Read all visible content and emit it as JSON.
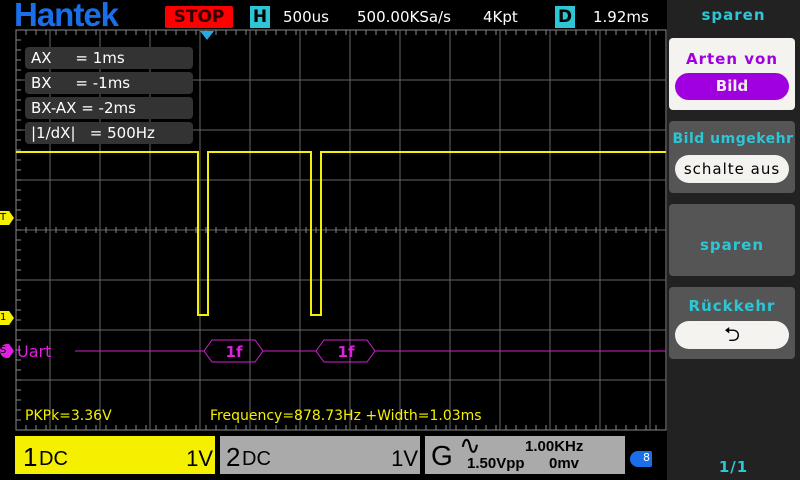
{
  "header": {
    "logo": "Hantek",
    "run_state": "STOP",
    "h_badge": "H",
    "timebase": "500us",
    "sample_rate": "500.00KSa/s",
    "memory_depth": "4Kpt",
    "d_badge": "D",
    "delay": "1.92ms"
  },
  "cursors": {
    "ax": "AX     = 1ms",
    "bx": "BX     = -1ms",
    "diff": "BX-AX = -2ms",
    "freq": "|1/dX|   = 500Hz"
  },
  "markers": {
    "trigger": "T",
    "ch1": "1",
    "serial": "S",
    "decoder": "Uart"
  },
  "decode": [
    {
      "value": "1f"
    },
    {
      "value": "1f"
    }
  ],
  "measurements": {
    "pkpk": "PKPk=3.36V",
    "freq_width": "Frequency=878.73Hz +Width=1.03ms"
  },
  "channels": {
    "ch1": {
      "name": "1",
      "coupling": "DC",
      "scale": "1V",
      "color": "#f5f000"
    },
    "ch2": {
      "name": "2",
      "coupling": "DC",
      "scale": "1V"
    },
    "gen": {
      "name": "G",
      "freq": "1.00KHz",
      "amp": "1.50Vpp",
      "offset": "0mv"
    }
  },
  "menu": {
    "title": "sparen",
    "type_label": "Arten von",
    "type_value": "Bild",
    "invert_label": "Bild umgekehr",
    "invert_value": "schalte aus",
    "save": "sparen",
    "back_label": "Rückkehr",
    "page": "1/1"
  },
  "colors": {
    "trace": "#f5f000",
    "decode": "#d020d0",
    "accent": "#2cc6d6",
    "menu_selected": "#a000e0"
  }
}
